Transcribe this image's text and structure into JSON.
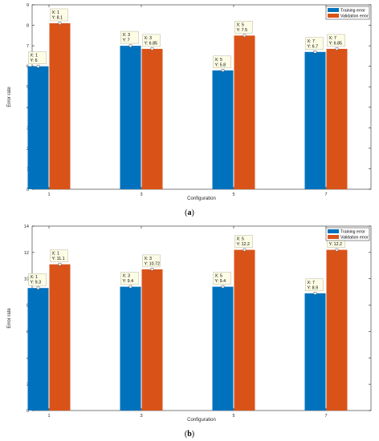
{
  "chart_data": [
    {
      "type": "bar",
      "caption_open": "(",
      "caption_letter": "a",
      "caption_close": ")",
      "xlabel": "Configuration",
      "ylabel": "Error rate",
      "categories": [
        "1",
        "3",
        "5",
        "7"
      ],
      "ylim": [
        0,
        9
      ],
      "yticks": [
        0,
        1,
        2,
        3,
        4,
        5,
        6,
        7,
        8,
        9
      ],
      "legend_position": "top-right",
      "series": [
        {
          "name": "Training error",
          "color": "#0072BD",
          "values": [
            6,
            7,
            5.8,
            6.7
          ]
        },
        {
          "name": "Validation error",
          "color": "#D95319",
          "values": [
            8.1,
            6.85,
            7.5,
            6.85
          ]
        }
      ],
      "datatips": [
        {
          "series": 0,
          "index": 0,
          "x": "X: 1",
          "y": "Y: 6"
        },
        {
          "series": 1,
          "index": 0,
          "x": "X: 1",
          "y": "Y: 8.1"
        },
        {
          "series": 0,
          "index": 1,
          "x": "X: 3",
          "y": "Y: 7"
        },
        {
          "series": 1,
          "index": 1,
          "x": "X: 3",
          "y": "Y: 6.85"
        },
        {
          "series": 0,
          "index": 2,
          "x": "X: 5",
          "y": "Y: 5.8"
        },
        {
          "series": 1,
          "index": 2,
          "x": "X: 5",
          "y": "Y: 7.5"
        },
        {
          "series": 0,
          "index": 3,
          "x": "X: 7",
          "y": "Y: 6.7"
        },
        {
          "series": 1,
          "index": 3,
          "x": "X: 7",
          "y": "Y: 6.85"
        }
      ],
      "grid": false
    },
    {
      "type": "bar",
      "caption_open": "(",
      "caption_letter": "b",
      "caption_close": ")",
      "xlabel": "Configuration",
      "ylabel": "Error rate",
      "categories": [
        "1",
        "3",
        "5",
        "7"
      ],
      "ylim": [
        0,
        14
      ],
      "yticks": [
        0,
        2,
        4,
        6,
        8,
        10,
        12,
        14
      ],
      "legend_position": "top-right",
      "series": [
        {
          "name": "Training error",
          "color": "#0072BD",
          "values": [
            9.3,
            9.4,
            9.4,
            8.9
          ]
        },
        {
          "name": "Validation error",
          "color": "#D95319",
          "values": [
            11.1,
            10.72,
            12.2,
            12.2
          ]
        }
      ],
      "datatips": [
        {
          "series": 0,
          "index": 0,
          "x": "X: 1",
          "y": "Y: 9.3"
        },
        {
          "series": 1,
          "index": 0,
          "x": "X: 1",
          "y": "Y: 11.1"
        },
        {
          "series": 0,
          "index": 1,
          "x": "X: 3",
          "y": "Y: 9.4"
        },
        {
          "series": 1,
          "index": 1,
          "x": "X: 3",
          "y": "Y: 10.72"
        },
        {
          "series": 0,
          "index": 2,
          "x": "X: 5",
          "y": "Y: 9.4"
        },
        {
          "series": 1,
          "index": 2,
          "x": "X: 5",
          "y": "Y: 12.2"
        },
        {
          "series": 0,
          "index": 3,
          "x": "X: 7",
          "y": "Y: 8.9"
        },
        {
          "series": 1,
          "index": 3,
          "x": "X: 7",
          "y": "Y: 12.2"
        }
      ],
      "grid": false
    }
  ]
}
